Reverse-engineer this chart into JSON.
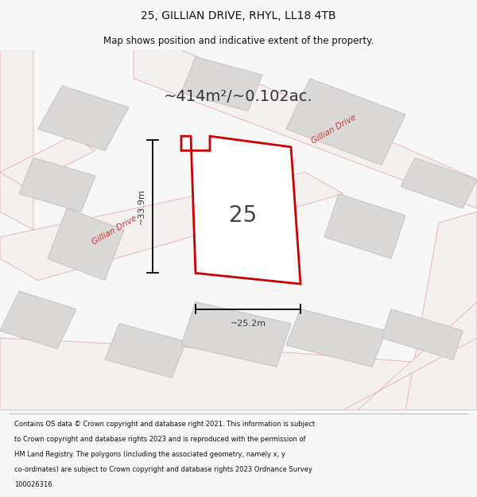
{
  "title": "25, GILLIAN DRIVE, RHYL, LL18 4TB",
  "subtitle": "Map shows position and indicative extent of the property.",
  "area_text": "~414m²/~0.102ac.",
  "number_label": "25",
  "dim_width": "~25.2m",
  "dim_height": "~33.9m",
  "footer_lines": [
    "Contains OS data © Crown copyright and database right 2021. This information is subject",
    "to Crown copyright and database rights 2023 and is reproduced with the permission of",
    "HM Land Registry. The polygons (including the associated geometry, namely x, y",
    "co-ordinates) are subject to Crown copyright and database rights 2023 Ordnance Survey",
    "100026316."
  ],
  "bg_color": "#f7f7f7",
  "map_bg": "#eeecec",
  "road_color": "#e8b4b8",
  "road_fill": "#f5f0f0",
  "building_fill": "#dbd8d8",
  "building_edge": "#c8c4c4",
  "highlight_color": "#cc0000",
  "road_label_color": "#cc3333",
  "title_color": "#111111",
  "footer_color": "#111111"
}
